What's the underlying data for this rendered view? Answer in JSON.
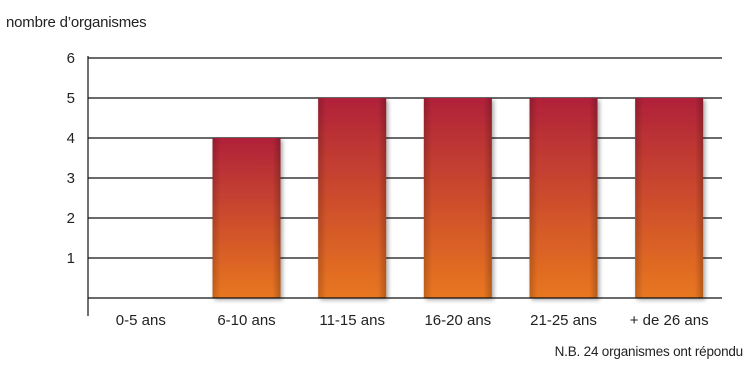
{
  "chart_data": {
    "type": "bar",
    "ylabel": "nombre d’organismes",
    "categories": [
      "0-5 ans",
      "6-10 ans",
      "11-15 ans",
      "16-20 ans",
      "21-25 ans",
      "+ de 26 ans"
    ],
    "values": [
      0,
      4,
      5,
      5,
      5,
      5
    ],
    "ylim": [
      0,
      6
    ],
    "yticks": [
      "1",
      "2",
      "3",
      "4",
      "5",
      "6"
    ],
    "grid": true,
    "bar_color_top": "#b0213a",
    "bar_color_bottom": "#e8771f",
    "note": "N.B. 24 organismes ont répondu"
  }
}
